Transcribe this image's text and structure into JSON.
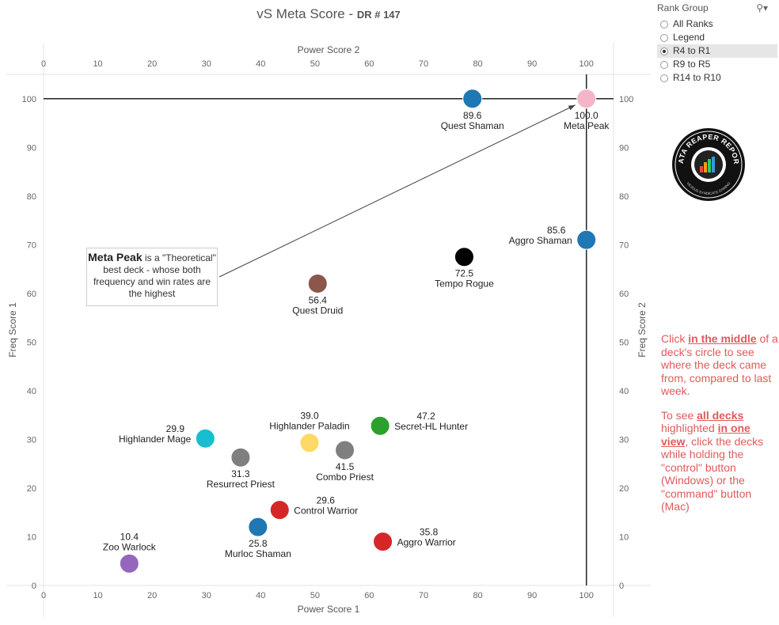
{
  "title": {
    "main": "vS Meta Score - ",
    "sub": "DR # 147"
  },
  "filter": {
    "title": "Rank Group",
    "icon": "search-dropdown-icon",
    "options": [
      "All Ranks",
      "Legend",
      "R4 to R1",
      "R9 to R5",
      "R14 to R10"
    ],
    "selected": "R4 to R1"
  },
  "callout": {
    "bold": "Meta Peak",
    "rest": " is a \"Theoretical\" best deck - whose both frequency and win rates are the highest"
  },
  "instructions": {
    "p1_pre": "Click ",
    "p1_bold": "in the middle",
    "p1_post": " of a deck's circle to see where the deck came from, compared to last week.",
    "p2_pre": "To see ",
    "p2_bold1": "all decks ",
    "p2_mid": "highlighted ",
    "p2_bold2": "in one view",
    "p2_post": ", click the decks while holding the \"control\" button (Windows) or the \"command\" button (Mac)"
  },
  "logo": {
    "text_top": "DATA REAPER REPORT",
    "text_bottom": "VICIOUS SYNDICATE GAMING"
  },
  "chart_data": {
    "type": "scatter",
    "xlabel": "Power Score 1",
    "ylabel": "Freq Score 1",
    "x2label": "Power Score 2",
    "y2label": "Freq Score 2",
    "xlim": [
      0,
      105
    ],
    "ylim": [
      0,
      105
    ],
    "xticks": [
      0,
      10,
      20,
      30,
      40,
      50,
      60,
      70,
      80,
      90,
      100
    ],
    "yticks": [
      0,
      10,
      20,
      30,
      40,
      50,
      60,
      70,
      80,
      90,
      100
    ],
    "reference_lines": {
      "x": 100,
      "y": 100
    },
    "points": [
      {
        "name": "Meta Peak",
        "score": "100.0",
        "x": 100,
        "y": 100,
        "color": "#f4b6c7",
        "label": "below"
      },
      {
        "name": "Quest Shaman",
        "score": "89.6",
        "x": 79,
        "y": 100,
        "color": "#1f77b4",
        "label": "below"
      },
      {
        "name": "Aggro Shaman",
        "score": "85.6",
        "x": 100,
        "y": 71,
        "color": "#1f77b4",
        "label": "left"
      },
      {
        "name": "Tempo Rogue",
        "score": "72.5",
        "x": 77.5,
        "y": 67.5,
        "color": "#000000",
        "label": "below"
      },
      {
        "name": "Quest Druid",
        "score": "56.4",
        "x": 50.5,
        "y": 62,
        "color": "#8c564b",
        "label": "below"
      },
      {
        "name": "Secret-HL Hunter",
        "score": "47.2",
        "x": 62,
        "y": 32.8,
        "color": "#2ca02c",
        "label": "right"
      },
      {
        "name": "Highlander Paladin",
        "score": "39.0",
        "x": 49,
        "y": 29.3,
        "color": "#ffd966",
        "label": "above"
      },
      {
        "name": "Combo Priest",
        "score": "41.5",
        "x": 55.5,
        "y": 27.8,
        "color": "#7f7f7f",
        "label": "below"
      },
      {
        "name": "Highlander Mage",
        "score": "29.9",
        "x": 29.8,
        "y": 30.2,
        "color": "#17becf",
        "label": "left"
      },
      {
        "name": "Resurrect Priest",
        "score": "31.3",
        "x": 36.3,
        "y": 26.3,
        "color": "#7f7f7f",
        "label": "below"
      },
      {
        "name": "Control Warrior",
        "score": "29.6",
        "x": 43.5,
        "y": 15.5,
        "color": "#d62728",
        "label": "right"
      },
      {
        "name": "Murloc Shaman",
        "score": "25.8",
        "x": 39.5,
        "y": 12,
        "color": "#1f77b4",
        "label": "below"
      },
      {
        "name": "Aggro Warrior",
        "score": "35.8",
        "x": 62.5,
        "y": 9,
        "color": "#d62728",
        "label": "right"
      },
      {
        "name": "Zoo Warlock",
        "score": "10.4",
        "x": 15.8,
        "y": 4.5,
        "color": "#9467bd",
        "label": "above"
      }
    ]
  }
}
